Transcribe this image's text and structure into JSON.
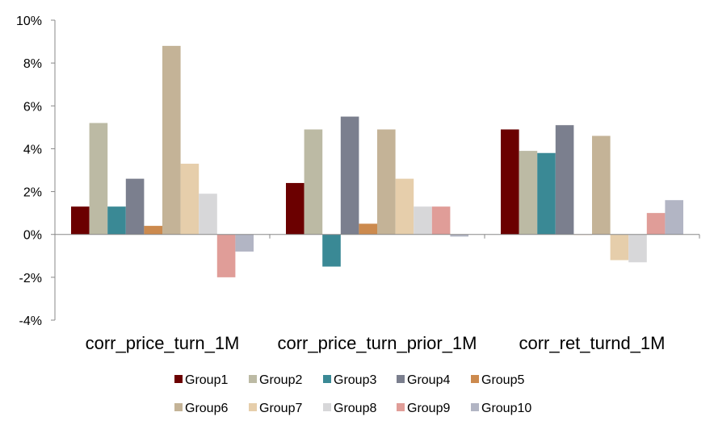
{
  "chart_data": {
    "type": "bar",
    "categories": [
      "corr_price_turn_1M",
      "corr_price_turn_prior_1M",
      "corr_ret_turnd_1M"
    ],
    "y_tick_labels": [
      "10%",
      "8%",
      "6%",
      "4%",
      "2%",
      "0%",
      "-2%",
      "-4%"
    ],
    "ylim": [
      -4,
      10
    ],
    "unit": "%",
    "grid": false,
    "legend_position": "bottom",
    "series": [
      {
        "name": "Group1",
        "color": "#6b0000",
        "values": [
          1.3,
          2.4,
          4.9
        ]
      },
      {
        "name": "Group2",
        "color": "#bcbaa4",
        "values": [
          5.2,
          4.9,
          3.9
        ]
      },
      {
        "name": "Group3",
        "color": "#3a8995",
        "values": [
          1.3,
          -1.5,
          3.8
        ]
      },
      {
        "name": "Group4",
        "color": "#7b7f8e",
        "values": [
          2.6,
          5.5,
          5.1
        ]
      },
      {
        "name": "Group5",
        "color": "#cc8a4e",
        "values": [
          0.4,
          0.5,
          0.0
        ]
      },
      {
        "name": "Group6",
        "color": "#c4b397",
        "values": [
          8.8,
          4.9,
          4.6
        ]
      },
      {
        "name": "Group7",
        "color": "#e6ceab",
        "values": [
          3.3,
          2.6,
          -1.2
        ]
      },
      {
        "name": "Group8",
        "color": "#d7d7d9",
        "values": [
          1.9,
          1.3,
          -1.3
        ]
      },
      {
        "name": "Group9",
        "color": "#e09d98",
        "values": [
          -2.0,
          1.3,
          1.0
        ]
      },
      {
        "name": "Group10",
        "color": "#b2b5c4",
        "values": [
          -0.8,
          -0.1,
          1.6
        ]
      }
    ]
  }
}
